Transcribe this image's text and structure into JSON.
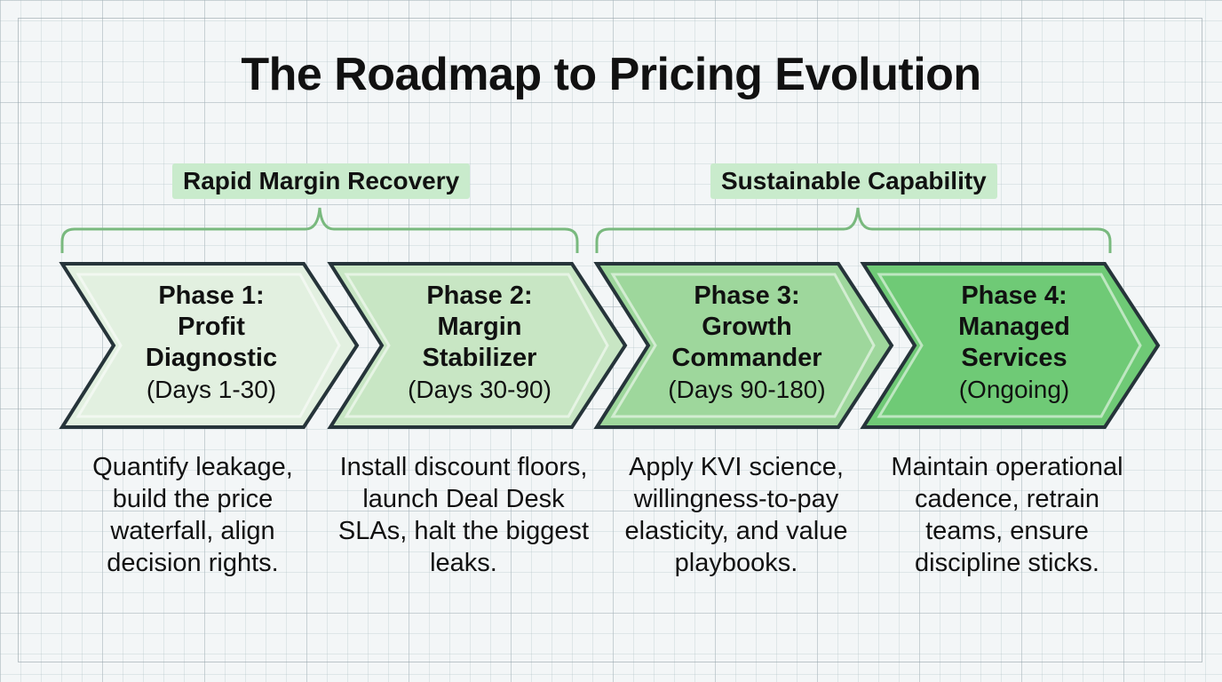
{
  "title": "The Roadmap to Pricing Evolution",
  "groups": [
    {
      "label": "Rapid Margin Recovery"
    },
    {
      "label": "Sustainable Capability"
    }
  ],
  "phases": [
    {
      "title_line1": "Phase 1:",
      "title_line2": "Profit",
      "title_line3": "Diagnostic",
      "days": "(Days 1-30)",
      "description": "Quantify leakage, build the price waterfall, align decision rights.",
      "fill": "#e2f0e0"
    },
    {
      "title_line1": "Phase 2:",
      "title_line2": "Margin",
      "title_line3": "Stabilizer",
      "days": "(Days 30-90)",
      "description": "Install discount floors, launch Deal Desk SLAs, halt the biggest leaks.",
      "fill": "#c8e6c4"
    },
    {
      "title_line1": "Phase 3:",
      "title_line2": "Growth",
      "title_line3": "Commander",
      "days": "(Days 90-180)",
      "description": "Apply KVI science, willingness-to-pay elasticity, and value playbooks.",
      "fill": "#9ed79c"
    },
    {
      "title_line1": "Phase 4:",
      "title_line2": "Managed",
      "title_line3": "Services",
      "days": "(Ongoing)",
      "description": "Maintain operational cadence, retrain teams, ensure discipline sticks.",
      "fill": "#6fca76"
    }
  ]
}
